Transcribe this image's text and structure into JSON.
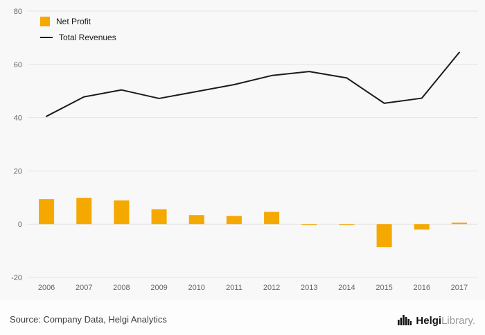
{
  "chart_data": {
    "type": "bar+line",
    "title": "",
    "xlabel": "",
    "ylabel": "",
    "categories": [
      "2006",
      "2007",
      "2008",
      "2009",
      "2010",
      "2011",
      "2012",
      "2013",
      "2014",
      "2015",
      "2016",
      "2017"
    ],
    "series": [
      {
        "name": "Net Profit",
        "type": "bar",
        "color": "#F5A800",
        "values": [
          9.4,
          9.9,
          8.9,
          5.6,
          3.4,
          3.1,
          4.6,
          -0.3,
          -0.3,
          -8.6,
          -2.0,
          0.6
        ]
      },
      {
        "name": "Total Revenues",
        "type": "line",
        "color": "#1a1a1a",
        "values": [
          40.5,
          47.8,
          50.4,
          47.2,
          49.8,
          52.4,
          55.8,
          57.3,
          54.9,
          45.4,
          47.3,
          64.5
        ]
      }
    ],
    "ylim": [
      -20,
      80
    ],
    "yticks": [
      -20,
      0,
      20,
      40,
      60,
      80
    ],
    "grid": true,
    "legend_position": "top-left",
    "plot_background": "#f8f8f8",
    "grid_color": "#e3e3e3",
    "tick_color": "#666666"
  },
  "legend": {
    "net_profit_label": "Net Profit",
    "total_revenues_label": "Total Revenues"
  },
  "footer": {
    "source": "Source: Company Data, Helgi Analytics",
    "brand": {
      "name": "Helgi",
      "suffix": "Library",
      "dot": "."
    }
  }
}
